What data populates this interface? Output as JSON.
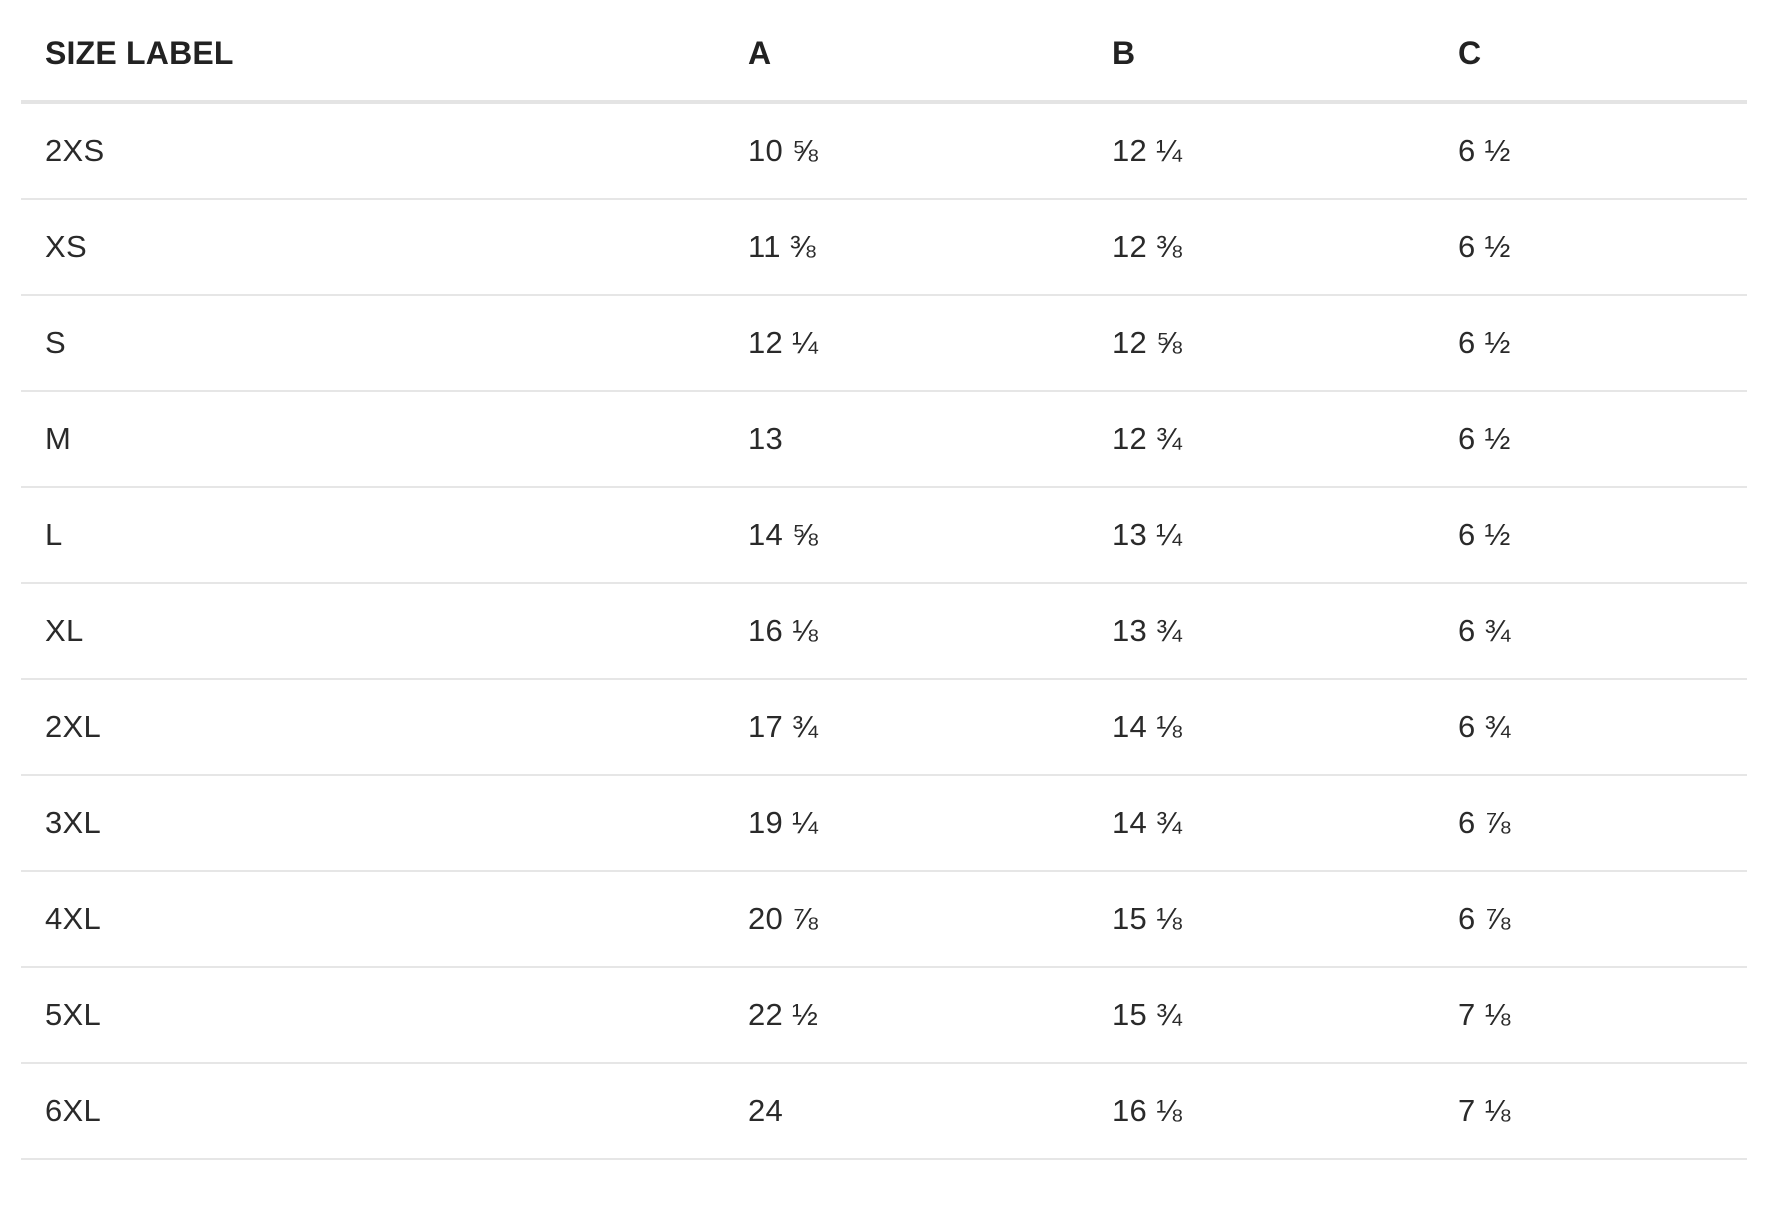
{
  "table": {
    "headers": [
      "SIZE LABEL",
      "A",
      "B",
      "C"
    ],
    "rows": [
      [
        "2XS",
        "10 ⅝",
        "12 ¼",
        "6 ½"
      ],
      [
        "XS",
        "11 ⅜",
        "12 ⅜",
        "6 ½"
      ],
      [
        "S",
        "12 ¼",
        "12 ⅝",
        "6 ½"
      ],
      [
        "M",
        "13",
        "12 ¾",
        "6 ½"
      ],
      [
        "L",
        "14 ⅝",
        "13 ¼",
        "6 ½"
      ],
      [
        "XL",
        "16 ⅛",
        "13 ¾",
        "6 ¾"
      ],
      [
        "2XL",
        "17 ¾",
        "14 ⅛",
        "6 ¾"
      ],
      [
        "3XL",
        "19 ¼",
        "14 ¾",
        "6 ⅞"
      ],
      [
        "4XL",
        "20 ⅞",
        "15 ⅛",
        "6 ⅞"
      ],
      [
        "5XL",
        "22 ½",
        "15 ¾",
        "7 ⅛"
      ],
      [
        "6XL",
        "24",
        "16 ⅛",
        "7 ⅛"
      ]
    ]
  }
}
